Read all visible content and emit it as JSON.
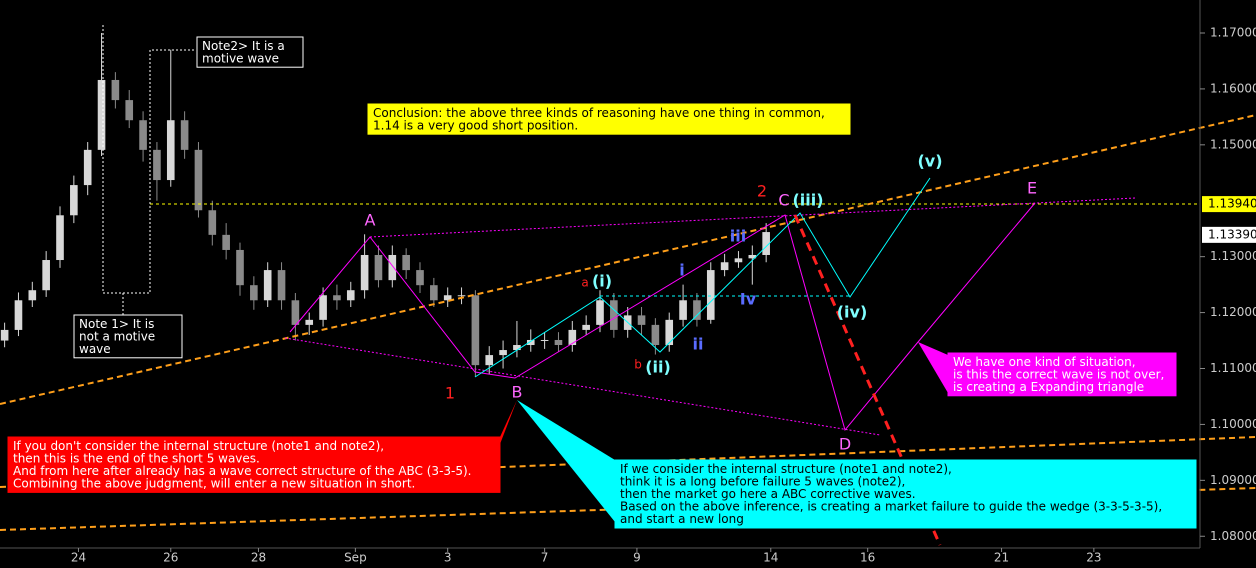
{
  "chart_data": {
    "type": "candlestick",
    "x": [
      1,
      4,
      7,
      10,
      13,
      16,
      19,
      22,
      25,
      28,
      31,
      34,
      37,
      40,
      43,
      46,
      49,
      52,
      55,
      58,
      61,
      64,
      67,
      70,
      73,
      76,
      79,
      82,
      85,
      88,
      91,
      94,
      97,
      100,
      103,
      106,
      109,
      112,
      115,
      118,
      121,
      124,
      127,
      130,
      133,
      136,
      139,
      142,
      145,
      148,
      151,
      154,
      157,
      160,
      163,
      166
    ],
    "open": [
      1.115,
      1.1169,
      1.1222,
      1.124,
      1.1294,
      1.1374,
      1.1428,
      1.1491,
      1.1616,
      1.158,
      1.1544,
      1.1491,
      1.1437,
      1.1544,
      1.1491,
      1.1383,
      1.1339,
      1.1312,
      1.1249,
      1.1222,
      1.1276,
      1.1222,
      1.1178,
      1.1187,
      1.1231,
      1.1222,
      1.124,
      1.1303,
      1.1258,
      1.1303,
      1.1276,
      1.1249,
      1.1222,
      1.1231,
      1.1231,
      1.1106,
      1.1124,
      1.1133,
      1.1142,
      1.1151,
      1.1151,
      1.1142,
      1.1169,
      1.1178,
      1.1222,
      1.1169,
      1.1195,
      1.1178,
      1.1142,
      1.1187,
      1.1222,
      1.1187,
      1.1276,
      1.129,
      1.1297,
      1.1303
    ],
    "high": [
      1.1182,
      1.1236,
      1.1255,
      1.131,
      1.139,
      1.1445,
      1.1505,
      1.17,
      1.163,
      1.1598,
      1.156,
      1.1505,
      1.167,
      1.156,
      1.1505,
      1.14,
      1.136,
      1.1325,
      1.1265,
      1.129,
      1.129,
      1.1235,
      1.12,
      1.1245,
      1.125,
      1.1255,
      1.134,
      1.132,
      1.132,
      1.1315,
      1.129,
      1.1262,
      1.1245,
      1.1245,
      1.124,
      1.114,
      1.115,
      1.1185,
      1.117,
      1.1165,
      1.1165,
      1.1185,
      1.1195,
      1.124,
      1.1235,
      1.121,
      1.121,
      1.119,
      1.12,
      1.125,
      1.1235,
      1.129,
      1.1305,
      1.131,
      1.132,
      1.136
    ],
    "low": [
      1.1138,
      1.1158,
      1.121,
      1.1228,
      1.128,
      1.136,
      1.141,
      1.148,
      1.1565,
      1.153,
      1.147,
      1.14,
      1.1425,
      1.1475,
      1.137,
      1.132,
      1.1295,
      1.123,
      1.1205,
      1.121,
      1.1205,
      1.115,
      1.116,
      1.1175,
      1.1205,
      1.121,
      1.1225,
      1.1245,
      1.1245,
      1.126,
      1.1235,
      1.121,
      1.121,
      1.1215,
      1.1085,
      1.109,
      1.11,
      1.112,
      1.113,
      1.1135,
      1.113,
      1.113,
      1.116,
      1.1165,
      1.1155,
      1.1155,
      1.116,
      1.1125,
      1.113,
      1.1175,
      1.1175,
      1.118,
      1.1265,
      1.128,
      1.125,
      1.129
    ],
    "close": [
      1.1169,
      1.1222,
      1.124,
      1.1294,
      1.1374,
      1.1428,
      1.1491,
      1.1616,
      1.158,
      1.1544,
      1.1491,
      1.1437,
      1.1544,
      1.1491,
      1.1383,
      1.1339,
      1.1312,
      1.1249,
      1.1222,
      1.1276,
      1.1222,
      1.1178,
      1.1187,
      1.1231,
      1.1222,
      1.124,
      1.1303,
      1.1258,
      1.1303,
      1.1276,
      1.1249,
      1.1222,
      1.1231,
      1.1231,
      1.1106,
      1.1124,
      1.1133,
      1.1142,
      1.1151,
      1.1151,
      1.1142,
      1.1169,
      1.1178,
      1.1222,
      1.1169,
      1.1195,
      1.1178,
      1.1142,
      1.1187,
      1.1222,
      1.1187,
      1.1276,
      1.129,
      1.1297,
      1.1303,
      1.1344
    ],
    "up_color": "#d8d8d8",
    "down_color": "#8a8a8a",
    "xlim": [
      0,
      260
    ],
    "xticks": [
      {
        "value": 17,
        "label": "24"
      },
      {
        "value": 37,
        "label": "26"
      },
      {
        "value": 56,
        "label": "28"
      },
      {
        "value": 77,
        "label": "Sep"
      },
      {
        "value": 97,
        "label": "3"
      },
      {
        "value": 118,
        "label": "7"
      },
      {
        "value": 138,
        "label": "9"
      },
      {
        "value": 167,
        "label": "14"
      },
      {
        "value": 188,
        "label": "16"
      },
      {
        "value": 217,
        "label": "21"
      },
      {
        "value": 237,
        "label": "23"
      }
    ],
    "ylim": [
      1.0779,
      1.1759
    ],
    "yticks": [
      {
        "value": 1.17,
        "label": "1.17000"
      },
      {
        "value": 1.16,
        "label": "1.16000"
      },
      {
        "value": 1.15,
        "label": "1.15000"
      },
      {
        "value": 1.13,
        "label": "1.13000"
      },
      {
        "value": 1.12,
        "label": "1.12000"
      },
      {
        "value": 1.11,
        "label": "1.11000"
      },
      {
        "value": 1.1,
        "label": "1.10000"
      },
      {
        "value": 1.09,
        "label": "1.09000"
      },
      {
        "value": 1.08,
        "label": "1.08000"
      }
    ],
    "price_labels": [
      {
        "value": 1.1394,
        "label": "1.13940",
        "color": "#ffff00"
      },
      {
        "value": 1.1339,
        "label": "1.13390",
        "color": "#ffffff"
      }
    ],
    "wave_labels": [
      "A",
      "B",
      "1",
      "2",
      "C",
      "(iii)",
      "(v)",
      "E",
      "D",
      "(iv)",
      "(i)",
      "(ii)",
      "a",
      "b",
      "i",
      "ii",
      "iii",
      "Iv"
    ],
    "notes": {
      "note2": [
        "Note2> It is a",
        "motive wave"
      ],
      "note1": [
        "Note 1> It is",
        "not a motive",
        "wave"
      ],
      "conclusion": [
        "Conclusion: the above three kinds of reasoning have one thing in common,",
        "1.14 is a very good short position."
      ],
      "left": [
        "If you don't consider the internal structure (note1 and note2),",
        "then this is the end of the short 5 waves.",
        "And from here after already has a wave correct structure of the ABC (3-3-5).",
        "Combining the above judgment, will enter a new situation in short."
      ],
      "right": [
        "If we consider the internal structure (note1 and note2),",
        "think it is a long before failure 5 waves (note2),",
        "then the market go here a ABC corrective waves.",
        "Based on the above inference, is creating a market failure to guide the wedge (3-3-5-3-5),",
        "and start a new long"
      ],
      "triangle": [
        "We have one kind of situation,",
        "is this the correct wave is not over,",
        "is creating a Expanding triangle"
      ]
    }
  }
}
